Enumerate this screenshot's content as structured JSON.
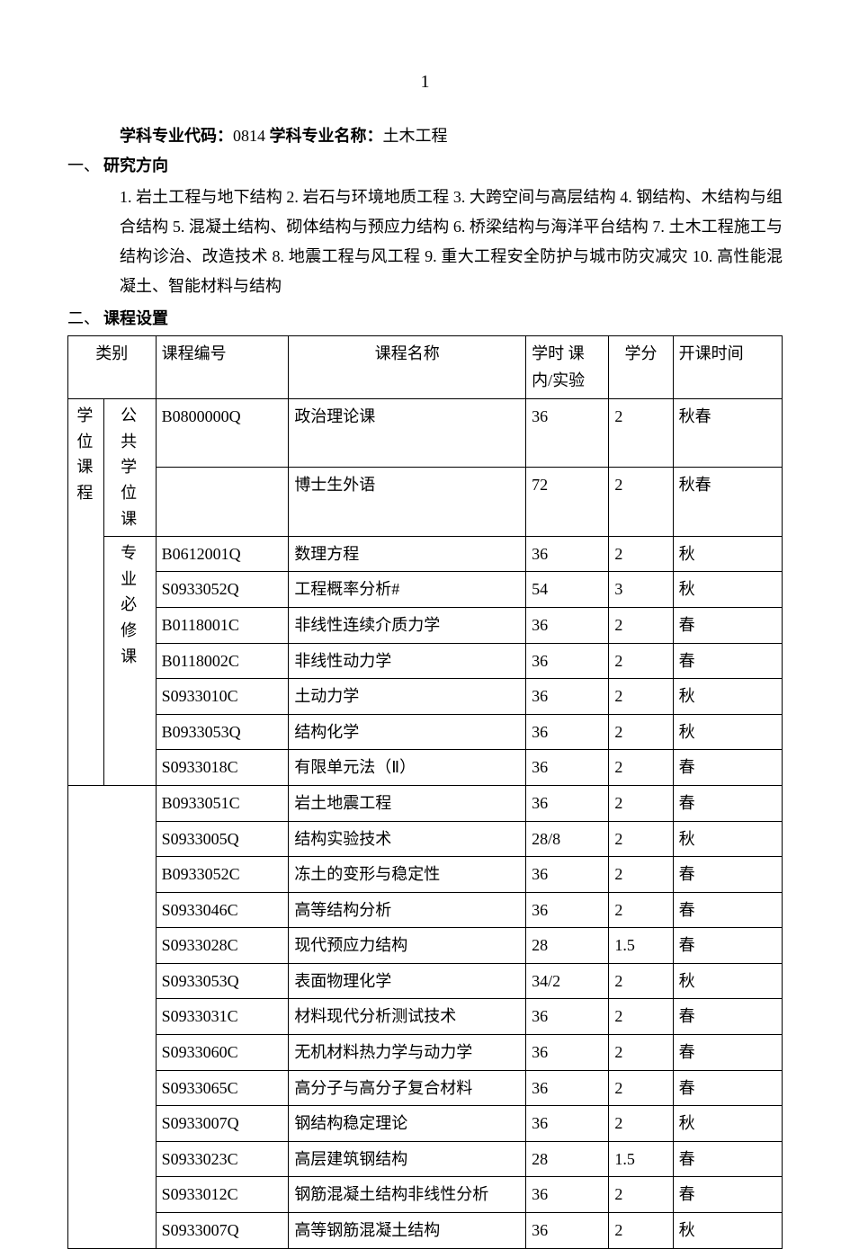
{
  "page_number": "1",
  "header": {
    "code_label": "学科专业代码：",
    "code_value": "0814",
    "name_label": "学科专业名称：",
    "name_value": "土木工程"
  },
  "section1": {
    "num": "一、",
    "title": "研究方向",
    "content": "1. 岩土工程与地下结构 2. 岩石与环境地质工程 3. 大跨空间与高层结构 4. 钢结构、木结构与组合结构 5. 混凝土结构、砌体结构与预应力结构 6. 桥梁结构与海洋平台结构 7. 土木工程施工与结构诊治、改造技术 8. 地震工程与风工程 9. 重大工程安全防护与城市防灾减灾 10. 高性能混凝土、智能材料与结构"
  },
  "section2": {
    "num": "二、",
    "title": "课程设置"
  },
  "table": {
    "headers": {
      "category": "类别",
      "code": "课程编号",
      "name": "课程名称",
      "hours": "学时 课内/实验",
      "credit": "学分",
      "term": "开课时间"
    },
    "cat1_degree": "学位课程",
    "cat2_public": "公共学位课",
    "cat2_major": "专业必修课",
    "rows": [
      {
        "code": "B0800000Q",
        "name": "政治理论课",
        "hours": "36",
        "credit": "2",
        "term": "秋春"
      },
      {
        "code": "",
        "name": "博士生外语",
        "hours": "72",
        "credit": "2",
        "term": "秋春"
      },
      {
        "code": "B0612001Q",
        "name": "数理方程",
        "hours": "36",
        "credit": "2",
        "term": "秋"
      },
      {
        "code": "S0933052Q",
        "name": "工程概率分析#",
        "hours": "54",
        "credit": "3",
        "term": "秋"
      },
      {
        "code": "B0118001C",
        "name": "非线性连续介质力学",
        "hours": "36",
        "credit": "2",
        "term": "春"
      },
      {
        "code": "B0118002C",
        "name": "非线性动力学",
        "hours": "36",
        "credit": "2",
        "term": "春"
      },
      {
        "code": "S0933010C",
        "name": "土动力学",
        "hours": "36",
        "credit": "2",
        "term": "秋"
      },
      {
        "code": "B0933053Q",
        "name": "结构化学",
        "hours": "36",
        "credit": "2",
        "term": "秋"
      },
      {
        "code": "S0933018C",
        "name": "有限单元法（Ⅱ）",
        "hours": "36",
        "credit": "2",
        "term": "春"
      },
      {
        "code": "B0933051C",
        "name": "岩土地震工程",
        "hours": "36",
        "credit": "2",
        "term": "春"
      },
      {
        "code": "S0933005Q",
        "name": "结构实验技术",
        "hours": "28/8",
        "credit": "2",
        "term": "秋"
      },
      {
        "code": "B0933052C",
        "name": "冻土的变形与稳定性",
        "hours": "36",
        "credit": "2",
        "term": "春"
      },
      {
        "code": "S0933046C",
        "name": "高等结构分析",
        "hours": "36",
        "credit": "2",
        "term": "春"
      },
      {
        "code": "S0933028C",
        "name": "现代预应力结构",
        "hours": "28",
        "credit": "1.5",
        "term": "春"
      },
      {
        "code": "S0933053Q",
        "name": "表面物理化学",
        "hours": "34/2",
        "credit": "2",
        "term": "秋"
      },
      {
        "code": "S0933031C",
        "name": "材料现代分析测试技术",
        "hours": "36",
        "credit": "2",
        "term": "春"
      },
      {
        "code": "S0933060C",
        "name": "无机材料热力学与动力学",
        "hours": "36",
        "credit": "2",
        "term": "春"
      },
      {
        "code": "S0933065C",
        "name": "高分子与高分子复合材料",
        "hours": "36",
        "credit": "2",
        "term": "春"
      },
      {
        "code": "S0933007Q",
        "name": "钢结构稳定理论",
        "hours": "36",
        "credit": "2",
        "term": "秋"
      },
      {
        "code": "S0933023C",
        "name": "高层建筑钢结构",
        "hours": "28",
        "credit": "1.5",
        "term": "春"
      },
      {
        "code": "S0933012C",
        "name": "钢筋混凝土结构非线性分析",
        "hours": "36",
        "credit": "2",
        "term": "春"
      },
      {
        "code": "S0933007Q",
        "name": "高等钢筋混凝土结构",
        "hours": "36",
        "credit": "2",
        "term": "秋"
      }
    ]
  }
}
